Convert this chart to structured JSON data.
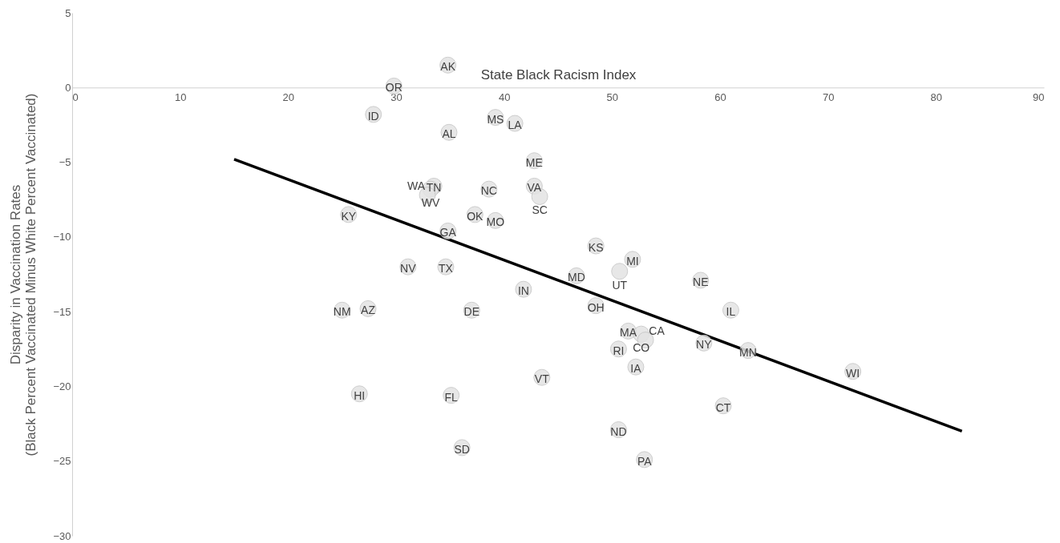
{
  "chart_data": {
    "type": "scatter",
    "xlabel": "State Black Racism Index",
    "ylabel": "Disparity in Vaccination Rates\n(Black Percent Vaccinated Minus White Percent Vaccinated)",
    "xlim": [
      0,
      90
    ],
    "xticks": [
      0,
      10,
      20,
      30,
      40,
      50,
      60,
      70,
      80,
      90
    ],
    "ylim": [
      -30,
      5
    ],
    "yticks": [
      -30,
      -25,
      -20,
      -15,
      -10,
      -5,
      0,
      5
    ],
    "series": [
      {
        "type": "scatter",
        "marker": "circle",
        "color": "#e3e3e3",
        "x": [
          34.8,
          29.8,
          27.9,
          34.9,
          39.2,
          41.0,
          42.8,
          33.5,
          33.2,
          32.9,
          38.6,
          42.8,
          43.3,
          25.6,
          37.3,
          39.2,
          34.8,
          31.1,
          34.6,
          41.8,
          25.0,
          27.4,
          37.0,
          43.5,
          26.6,
          35.1,
          36.1,
          48.5,
          51.9,
          50.7,
          46.7,
          58.2,
          48.5,
          61.0,
          51.5,
          52.7,
          53.1,
          58.5,
          50.6,
          62.6,
          52.2,
          72.3,
          60.3,
          50.6,
          53.0
        ],
        "values": [
          1.5,
          0.1,
          -1.8,
          -3.0,
          -2.0,
          -2.4,
          -4.9,
          -6.6,
          -6.8,
          -7.2,
          -6.8,
          -6.6,
          -7.3,
          -8.5,
          -8.5,
          -8.9,
          -9.6,
          -12.0,
          -12.0,
          -13.5,
          -14.9,
          -14.8,
          -14.9,
          -19.4,
          -20.5,
          -20.6,
          -24.1,
          -10.6,
          -11.5,
          -12.3,
          -12.6,
          -12.9,
          -14.6,
          -14.9,
          -16.3,
          -16.5,
          -16.9,
          -17.1,
          -17.5,
          -17.6,
          -18.7,
          -19.0,
          -21.3,
          -22.9,
          -24.9
        ],
        "value_labels": [
          "AK",
          "OR",
          "ID",
          "AL",
          "MS",
          "LA",
          "ME",
          "TN",
          "WV",
          "WA",
          "NC",
          "VA",
          "SC",
          "KY",
          "OK",
          "MO",
          "GA",
          "NV",
          "TX",
          "IN",
          "NM",
          "AZ",
          "DE",
          "VT",
          "HI",
          "FL",
          "SD",
          "KS",
          "MI",
          "UT",
          "MD",
          "NE",
          "OH",
          "IL",
          "MA",
          "CO",
          "CA",
          "NY",
          "RI",
          "MN",
          "IA",
          "WI",
          "CT",
          "ND",
          "PA"
        ]
      },
      {
        "type": "line",
        "color": "#000000",
        "x": [
          15.0,
          82.4
        ],
        "values": [
          -4.8,
          -23.0
        ]
      }
    ]
  }
}
